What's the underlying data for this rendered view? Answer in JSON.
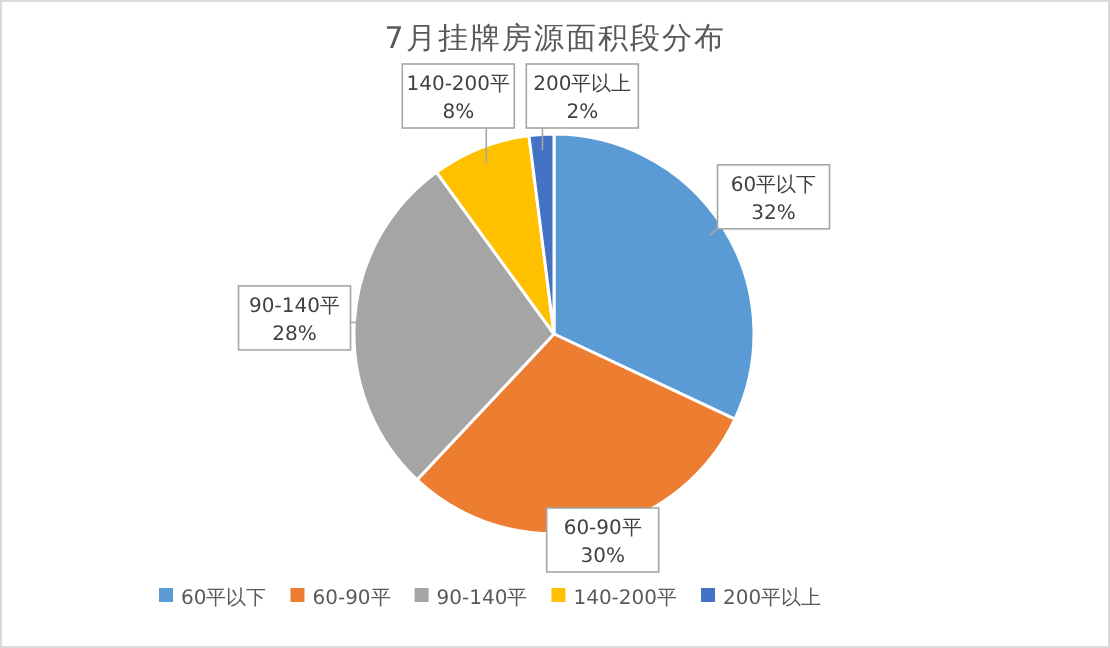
{
  "chart_data": {
    "type": "pie",
    "title": "7月挂牌房源面积段分布",
    "categories": [
      "60平以下",
      "60-90平",
      "90-140平",
      "140-200平",
      "200平以上"
    ],
    "values": [
      32,
      30,
      28,
      8,
      2
    ],
    "value_labels": [
      "32%",
      "30%",
      "28%",
      "8%",
      "2%"
    ],
    "colors": [
      "#5b9bd5",
      "#ed7d31",
      "#a5a5a5",
      "#ffc000",
      "#4472c4"
    ],
    "legend": "bottom"
  }
}
